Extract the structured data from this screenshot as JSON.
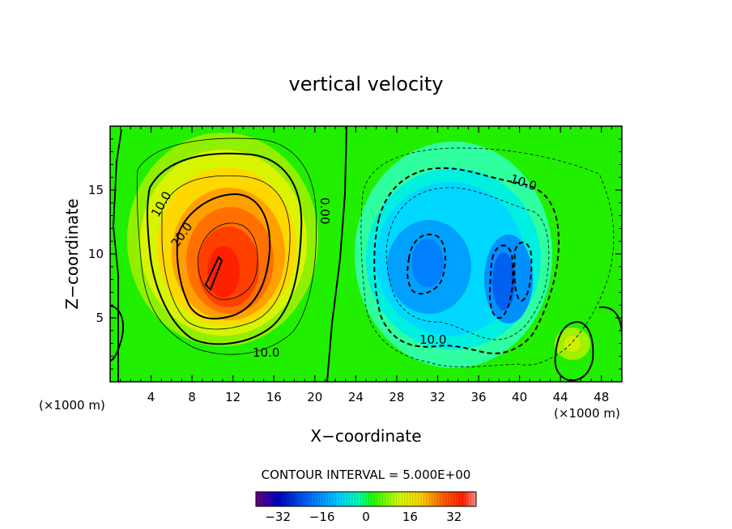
{
  "chart_data": {
    "type": "heatmap",
    "title": "vertical velocity",
    "xlabel": "X−coordinate",
    "ylabel": "Z−coordinate",
    "x_unit_left": "(×1000 m)",
    "x_unit_right": "(×1000 m)",
    "xlim": [
      0,
      50
    ],
    "ylim": [
      0,
      20
    ],
    "x_ticks": [
      4,
      8,
      12,
      16,
      20,
      24,
      28,
      32,
      36,
      40,
      44,
      48
    ],
    "y_ticks": [
      5,
      10,
      15
    ],
    "contour_interval_label": "CONTOUR INTERVAL = 5.000E+00",
    "contour_labels": [
      "10.0",
      "20.0",
      "10.0",
      "0.00",
      "10.0",
      "10.0"
    ],
    "colorbar": {
      "range": [
        -40,
        40
      ],
      "ticks": [
        -32,
        -16,
        0,
        16,
        32
      ],
      "tick_labels": [
        "−32",
        "−16",
        "0",
        "16",
        "32"
      ],
      "colors": [
        "#6a0080",
        "#0000c0",
        "#0070ff",
        "#00d0ff",
        "#00ffb0",
        "#20ff00",
        "#d0ff00",
        "#ffd000",
        "#ff6000",
        "#ff2000",
        "#ff9090"
      ]
    },
    "features": [
      {
        "kind": "updraft",
        "x": 11,
        "z": 9.5,
        "peak": 30
      },
      {
        "kind": "downdraft",
        "x": 31,
        "z": 10.5,
        "peak": -18
      },
      {
        "kind": "downdraft",
        "x": 38.5,
        "z": 8.5,
        "peak": -22
      },
      {
        "kind": "updraft",
        "x": 45,
        "z": 3.2,
        "peak": 12
      }
    ]
  }
}
